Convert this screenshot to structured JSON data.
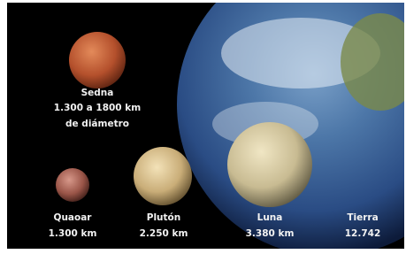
{
  "bodies": [
    {
      "name": "Sedna",
      "size": "1.300 a 1800 km",
      "note": "de diámetro"
    },
    {
      "name": "Quaoar",
      "size": "1.300 km"
    },
    {
      "name": "Plutón",
      "size": "2.250 km"
    },
    {
      "name": "Luna",
      "size": "3.380 km"
    },
    {
      "name": "Tierra",
      "size": "12.742"
    }
  ]
}
